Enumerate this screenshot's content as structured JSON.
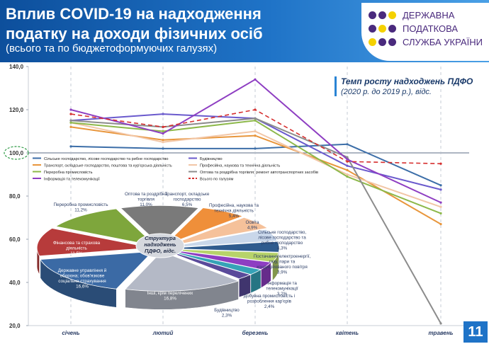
{
  "header": {
    "title": "Вплив COVID-19 на надходження податку на доходи фізичних осіб",
    "subtitle": "(всього та по бюджетоформуючих галузях)"
  },
  "brand": {
    "line1": "ДЕРЖАВНА",
    "line2": "ПОДАТКОВА",
    "line3": "СЛУЖБА УКРАЇНИ"
  },
  "page_number": "11",
  "note": {
    "title": "Темп росту надходжень ПДФО",
    "subtitle": "(2020 р. до 2019 р.), відс."
  },
  "colors": {
    "header": "#1f73c7",
    "accent_purple": "#4a2a7d"
  },
  "chart_data": [
    {
      "type": "line",
      "title": "Темп росту надходжень ПДФО",
      "categories": [
        "січень",
        "лютий",
        "березень",
        "квітень",
        "травень"
      ],
      "y_ticks": [
        "140,0",
        "120,0",
        "100,0",
        "80,0",
        "60,0",
        "40,0",
        "20,0"
      ],
      "ylim": [
        20,
        140
      ],
      "baseline": 100,
      "series": [
        {
          "name": "Сільське господарство, лісове господарство та рибне господарство",
          "color": "#3c6ea8",
          "values": [
            103,
            102,
            102,
            104,
            85
          ]
        },
        {
          "name": "Будівництво",
          "color": "#6a5acd",
          "values": [
            115,
            118,
            116,
            94,
            83
          ]
        },
        {
          "name": "Транспорт, складське господарство, поштова та кур'єрська діяльність",
          "color": "#e8963c",
          "values": [
            112,
            106,
            108,
            92,
            67
          ]
        },
        {
          "name": "Професійна, наукова та технічна діяльність",
          "color": "#f2c6a6",
          "values": [
            114,
            105,
            110,
            90,
            75
          ]
        },
        {
          "name": "Переробна промисловість",
          "color": "#8db84a",
          "values": [
            114,
            110,
            115,
            89,
            72
          ]
        },
        {
          "name": "Оптова та роздрібна торгівля; ремонт автотранспортних засобів",
          "color": "#8c8c8c",
          "values": [
            115,
            112,
            116,
            98,
            21
          ]
        },
        {
          "name": "Інформація та телекомунікації",
          "color": "#8e3ec2",
          "values": [
            120,
            109,
            134,
            97,
            77
          ]
        },
        {
          "name": "Всього по галузям",
          "color": "#d62f2f",
          "dashed": true,
          "values": [
            118,
            112,
            120,
            96,
            95
          ]
        }
      ]
    },
    {
      "type": "pie",
      "title": "Структура надходжень ПДФО, відс.",
      "slices": [
        {
          "label": "Оптова та роздрібна торгівля",
          "value_label": "11,0%",
          "value": 11.0,
          "color": "#7a7a7a"
        },
        {
          "label": "Транспорт, складське господарство",
          "value_label": "6,5%",
          "value": 6.5,
          "color": "#ef8f3a"
        },
        {
          "label": "Професійна, наукова та технічна діяльність",
          "value_label": "5,4%",
          "value": 5.4,
          "color": "#f5c19a"
        },
        {
          "label": "Освіта",
          "value_label": "4,9%",
          "value": 4.9,
          "color": "#c9d7ea"
        },
        {
          "label": "Сільське господарство, лісове господарство та рибне господарство",
          "value_label": "4,3%",
          "value": 4.3,
          "color": "#2f5b8e"
        },
        {
          "label": "Постачання електроенергії, газу, пари та кондиційованого повітря",
          "value_label": "3,9%",
          "value": 3.9,
          "color": "#b7d36a"
        },
        {
          "label": "Інформація та телекомунікації",
          "value_label": "3,2%",
          "value": 3.2,
          "color": "#8e3ec2"
        },
        {
          "label": "Добувна промисловість і розроблення кар'єрів",
          "value_label": "2,4%",
          "value": 2.4,
          "color": "#36a3b7"
        },
        {
          "label": "Будівництво",
          "value_label": "2,3%",
          "value": 2.3,
          "color": "#5a4a9a"
        },
        {
          "label": "Інші, крім перелічених",
          "value_label": "16,8%",
          "value": 16.8,
          "color": "#b4b9c6"
        },
        {
          "label": "Державне управління й оборона; обов'язкове соціальне страхування",
          "value_label": "16,6%",
          "value": 16.6,
          "color": "#3b6aa5"
        },
        {
          "label": "Фінансова та страхова діяльність",
          "value_label": "11,5%",
          "value": 11.5,
          "color": "#b73b3b"
        },
        {
          "label": "Переробна промисловість",
          "value_label": "11,2%",
          "value": 11.2,
          "color": "#7ea63c"
        }
      ]
    }
  ]
}
